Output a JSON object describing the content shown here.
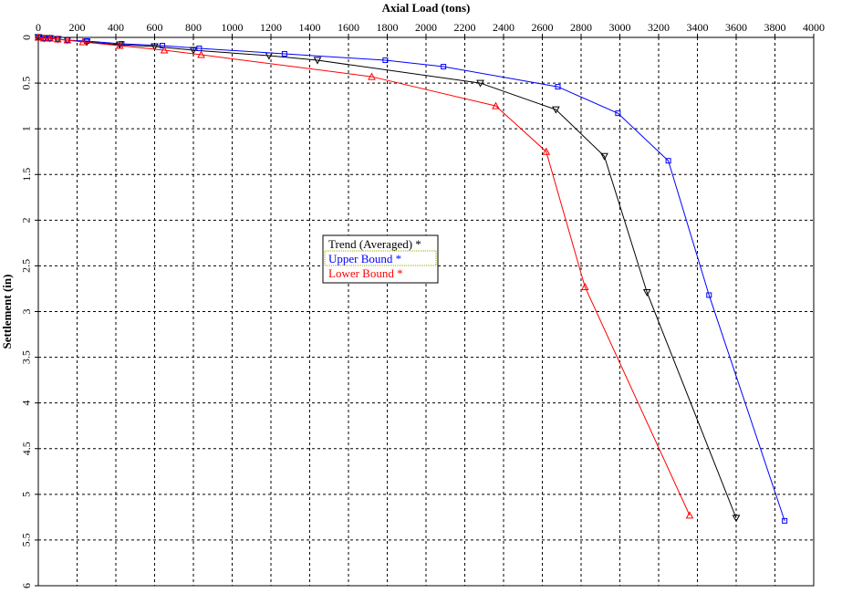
{
  "chart_data": {
    "type": "line",
    "title": "",
    "xlabel": "Axial Load (tons)",
    "ylabel": "Settlement (in)",
    "xlim": [
      0,
      4000
    ],
    "ylim": [
      0,
      6
    ],
    "y_inverted": true,
    "x_axis_position": "top",
    "grid": true,
    "grid_style": "dashed",
    "legend_position": "center-left",
    "x_ticks": [
      0,
      200,
      400,
      600,
      800,
      1000,
      1200,
      1400,
      1600,
      1800,
      2000,
      2200,
      2400,
      2600,
      2800,
      3000,
      3200,
      3400,
      3600,
      3800,
      4000
    ],
    "y_ticks": [
      0,
      0.5,
      1,
      1.5,
      2,
      2.5,
      3,
      3.5,
      4,
      4.5,
      5,
      5.5,
      6
    ],
    "series": [
      {
        "name": "Trend (Averaged) *",
        "color": "#000000",
        "marker": "triangle-down",
        "x": [
          0,
          30,
          60,
          100,
          150,
          250,
          420,
          600,
          800,
          1190,
          1440,
          2280,
          2670,
          2920,
          3140,
          3600
        ],
        "y": [
          0,
          0.01,
          0.01,
          0.02,
          0.03,
          0.05,
          0.08,
          0.1,
          0.14,
          0.2,
          0.25,
          0.5,
          0.79,
          1.3,
          2.79,
          5.26
        ]
      },
      {
        "name": "Upper Bound *",
        "color": "#0000ff",
        "marker": "square",
        "x": [
          0,
          30,
          60,
          100,
          150,
          250,
          430,
          640,
          830,
          1270,
          1790,
          2090,
          2680,
          2990,
          3250,
          3460,
          3850
        ],
        "y": [
          0,
          0.01,
          0.01,
          0.02,
          0.03,
          0.04,
          0.07,
          0.09,
          0.12,
          0.18,
          0.25,
          0.32,
          0.54,
          0.83,
          1.35,
          2.82,
          5.29
        ]
      },
      {
        "name": "Lower Bound *",
        "color": "#ff0000",
        "marker": "triangle-up",
        "x": [
          0,
          30,
          60,
          100,
          150,
          230,
          420,
          650,
          840,
          1720,
          2360,
          2620,
          2820,
          3360
        ],
        "y": [
          0,
          0.01,
          0.01,
          0.02,
          0.03,
          0.05,
          0.09,
          0.14,
          0.19,
          0.43,
          0.75,
          1.25,
          2.73,
          5.23
        ]
      }
    ]
  }
}
